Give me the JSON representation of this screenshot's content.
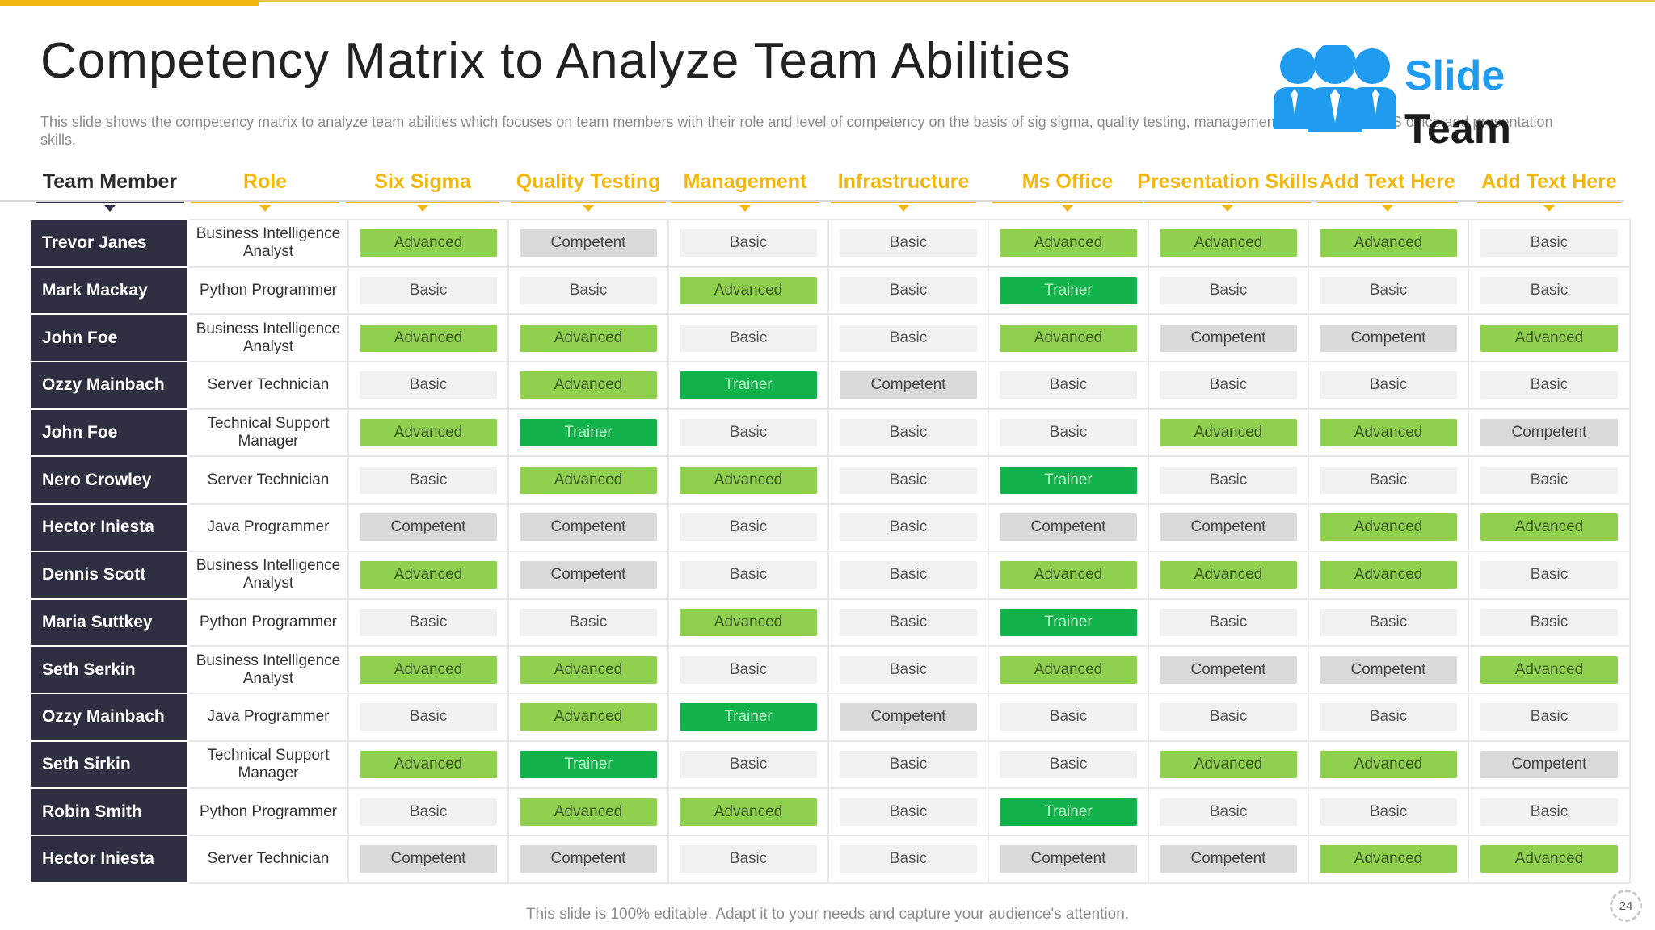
{
  "slide": {
    "title": "Competency Matrix to Analyze Team Abilities",
    "subtitle": "This slide shows the competency matrix to  analyze team abilities which focuses on team members with their role and level of competency on the basis of sig sigma, quality testing, management, infrastructure, MS office and presentation skills.",
    "footer": "This slide is 100% editable. Adapt it to your needs and capture your audience's attention.",
    "page_number": "24"
  },
  "logo": {
    "word1": "Slide",
    "word2": "Team",
    "icon": "team-people-icon"
  },
  "colors": {
    "accent": "#f2b70f",
    "name_cell": "#2f2f42",
    "advanced": "#8fd14f",
    "basic": "#f1f1f1",
    "competent": "#d9d9d9",
    "trainer": "#11b249",
    "logo_blue": "#1f9bf0"
  },
  "headers": [
    "Team Member",
    "Role",
    "Six Sigma",
    "Quality Testing",
    "Management",
    "Infrastructure",
    "Ms Office",
    "Presentation Skills",
    "Add Text Here",
    "Add Text Here"
  ],
  "rows": [
    {
      "name": "Trevor Janes",
      "role": "Business Intelligence Analyst",
      "levels": [
        "Advanced",
        "Competent",
        "Basic",
        "Basic",
        "Advanced",
        "Advanced",
        "Advanced",
        "Basic"
      ]
    },
    {
      "name": "Mark Mackay",
      "role": "Python Programmer",
      "levels": [
        "Basic",
        "Basic",
        "Advanced",
        "Basic",
        "Trainer",
        "Basic",
        "Basic",
        "Basic"
      ]
    },
    {
      "name": "John Foe",
      "role": "Business Intelligence Analyst",
      "levels": [
        "Advanced",
        "Advanced",
        "Basic",
        "Basic",
        "Advanced",
        "Competent",
        "Competent",
        "Advanced"
      ]
    },
    {
      "name": "Ozzy Mainbach",
      "role": "Server Technician",
      "levels": [
        "Basic",
        "Advanced",
        "Trainer",
        "Competent",
        "Basic",
        "Basic",
        "Basic",
        "Basic"
      ]
    },
    {
      "name": "John Foe",
      "role": "Technical Support Manager",
      "levels": [
        "Advanced",
        "Trainer",
        "Basic",
        "Basic",
        "Basic",
        "Advanced",
        "Advanced",
        "Competent"
      ]
    },
    {
      "name": "Nero Crowley",
      "role": "Server Technician",
      "levels": [
        "Basic",
        "Advanced",
        "Advanced",
        "Basic",
        "Trainer",
        "Basic",
        "Basic",
        "Basic"
      ]
    },
    {
      "name": "Hector Iniesta",
      "role": "Java Programmer",
      "levels": [
        "Competent",
        "Competent",
        "Basic",
        "Basic",
        "Competent",
        "Competent",
        "Advanced",
        "Advanced"
      ]
    },
    {
      "name": "Dennis  Scott",
      "role": "Business Intelligence Analyst",
      "levels": [
        "Advanced",
        "Competent",
        "Basic",
        "Basic",
        "Advanced",
        "Advanced",
        "Advanced",
        "Basic"
      ]
    },
    {
      "name": "Maria Suttkey",
      "role": "Python Programmer",
      "levels": [
        "Basic",
        "Basic",
        "Advanced",
        "Basic",
        "Trainer",
        "Basic",
        "Basic",
        "Basic"
      ]
    },
    {
      "name": "Seth Serkin",
      "role": "Business Intelligence Analyst",
      "levels": [
        "Advanced",
        "Advanced",
        "Basic",
        "Basic",
        "Advanced",
        "Competent",
        "Competent",
        "Advanced"
      ]
    },
    {
      "name": "Ozzy Mainbach",
      "role": "Java Programmer",
      "levels": [
        "Basic",
        "Advanced",
        "Trainer",
        "Competent",
        "Basic",
        "Basic",
        "Basic",
        "Basic"
      ]
    },
    {
      "name": "Seth Sirkin",
      "role": "Technical Support Manager",
      "levels": [
        "Advanced",
        "Trainer",
        "Basic",
        "Basic",
        "Basic",
        "Advanced",
        "Advanced",
        "Competent"
      ]
    },
    {
      "name": "Robin Smith",
      "role": "Python Programmer",
      "levels": [
        "Basic",
        "Advanced",
        "Advanced",
        "Basic",
        "Trainer",
        "Basic",
        "Basic",
        "Basic"
      ]
    },
    {
      "name": "Hector Iniesta",
      "role": "Server Technician",
      "levels": [
        "Competent",
        "Competent",
        "Basic",
        "Basic",
        "Competent",
        "Competent",
        "Advanced",
        "Advanced"
      ]
    }
  ]
}
